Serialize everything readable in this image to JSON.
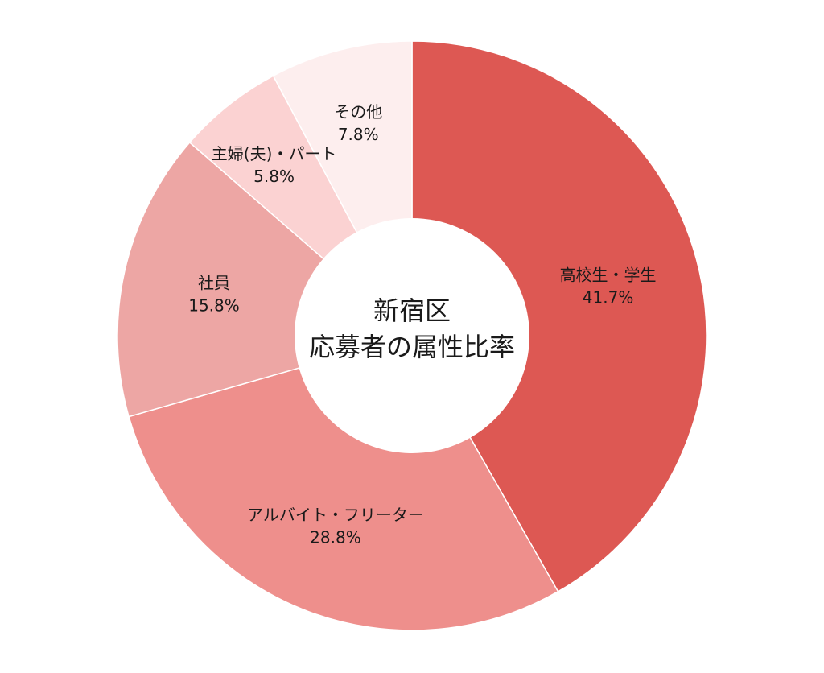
{
  "chart_data": {
    "type": "pie",
    "title_lines": [
      "新宿区",
      "応募者の属性比率"
    ],
    "slices": [
      {
        "label": "高校生・学生",
        "value": 41.7,
        "display": "41.7%",
        "color": "#dd5853"
      },
      {
        "label": "アルバイト・フリーター",
        "value": 28.8,
        "display": "28.8%",
        "color": "#ee8f8c"
      },
      {
        "label": "社員",
        "value": 15.8,
        "display": "15.8%",
        "color": "#eda6a4"
      },
      {
        "label": "主婦(夫)・パート",
        "value": 5.8,
        "display": "5.8%",
        "color": "#fbd2d2"
      },
      {
        "label": "その他",
        "value": 7.8,
        "display": "7.8%",
        "color": "#fdeeee"
      }
    ],
    "legend": "none",
    "donut": true
  }
}
